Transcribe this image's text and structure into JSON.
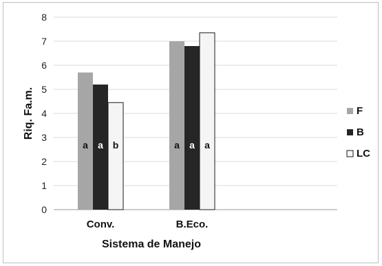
{
  "chart_data": {
    "type": "bar",
    "categories": [
      "Conv.",
      "B.Eco."
    ],
    "series": [
      {
        "name": "F",
        "values": [
          5.7,
          7.0
        ],
        "color": "#a6a6a6",
        "annotations": [
          "a",
          "a"
        ]
      },
      {
        "name": "B",
        "values": [
          5.2,
          6.8
        ],
        "color": "#262626",
        "annotations": [
          "a",
          "a"
        ]
      },
      {
        "name": "LC",
        "values": [
          4.45,
          7.35
        ],
        "color": "#f5f5f5",
        "annotations": [
          "b",
          "a"
        ]
      }
    ],
    "xlabel": "Sistema de Manejo",
    "ylabel": "Riq. Fa.m.",
    "ylim": [
      0,
      8
    ],
    "yticks": [
      0,
      1,
      2,
      3,
      4,
      5,
      6,
      7,
      8
    ],
    "grid": true,
    "legend": "right"
  }
}
